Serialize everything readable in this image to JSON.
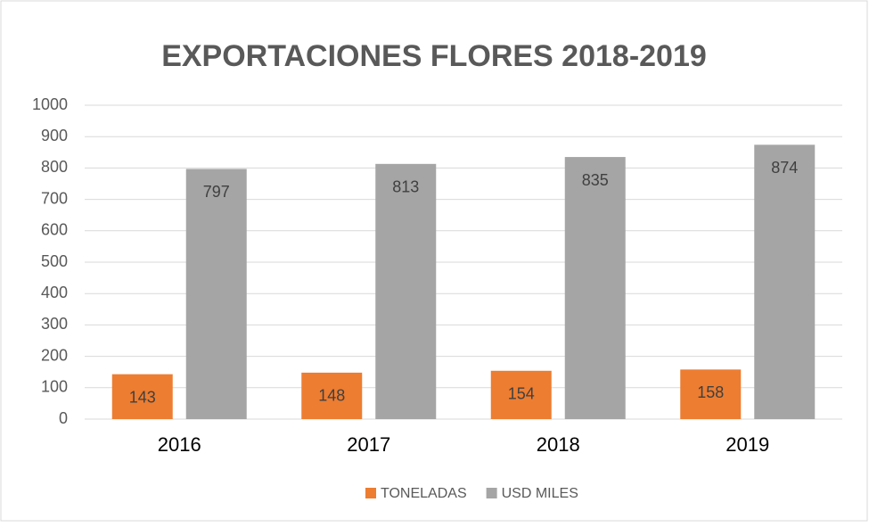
{
  "chart_data": {
    "type": "bar",
    "title": "EXPORTACIONES FLORES 2018-2019",
    "categories": [
      "2016",
      "2017",
      "2018",
      "2019"
    ],
    "series": [
      {
        "name": "TONELADAS",
        "color": "#ed7d31",
        "values": [
          143,
          148,
          154,
          158
        ]
      },
      {
        "name": "USD MILES",
        "color": "#a5a5a5",
        "values": [
          797,
          813,
          835,
          874
        ]
      }
    ],
    "ylim": [
      0,
      1000
    ],
    "yticks": [
      0,
      100,
      200,
      300,
      400,
      500,
      600,
      700,
      800,
      900,
      1000
    ],
    "grid": true,
    "legend": "bottom"
  }
}
